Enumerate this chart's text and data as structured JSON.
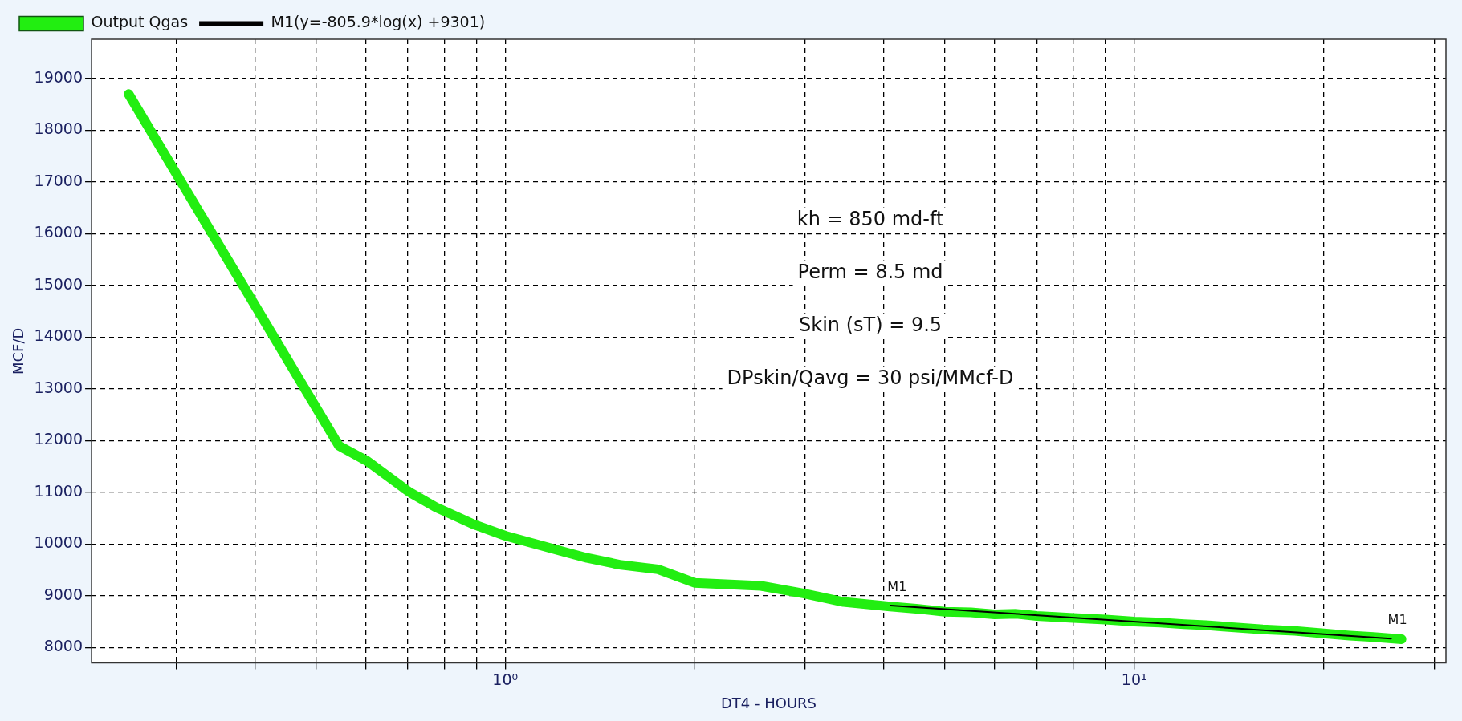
{
  "chart_data": {
    "type": "line",
    "xlabel": "DT4 - HOURS",
    "ylabel": "MCF/D",
    "xlim": [
      0.22,
      31.3
    ],
    "ylim": [
      7700,
      19760
    ],
    "xticks": [
      {
        "value": 0.3,
        "label": null
      },
      {
        "value": 0.4,
        "label": null
      },
      {
        "value": 0.5,
        "label": null
      },
      {
        "value": 0.6,
        "label": null
      },
      {
        "value": 0.7,
        "label": null
      },
      {
        "value": 0.8,
        "label": null
      },
      {
        "value": 0.9,
        "label": null
      },
      {
        "value": 1,
        "label": "10⁰"
      },
      {
        "value": 2,
        "label": null
      },
      {
        "value": 3,
        "label": null
      },
      {
        "value": 4,
        "label": null
      },
      {
        "value": 5,
        "label": null
      },
      {
        "value": 6,
        "label": null
      },
      {
        "value": 7,
        "label": null
      },
      {
        "value": 8,
        "label": null
      },
      {
        "value": 9,
        "label": null
      },
      {
        "value": 10,
        "label": "10¹"
      },
      {
        "value": 20,
        "label": null
      },
      {
        "value": 30,
        "label": null
      }
    ],
    "yticks": [
      8000,
      9000,
      10000,
      11000,
      12000,
      13000,
      14000,
      15000,
      16000,
      17000,
      18000,
      19000
    ],
    "log": "x",
    "grid": true,
    "legend": "top left",
    "marker": "none",
    "series": [
      {
        "name": "Output Qgas",
        "color": "#22ee11",
        "x": [
          0.252,
          0.544,
          0.604,
          0.705,
          0.776,
          0.895,
          1.0,
          1.24,
          1.35,
          1.52,
          1.75,
          2.0,
          2.55,
          2.99,
          3.45,
          4.09,
          4.5,
          5,
          5.5,
          6,
          6.5,
          7,
          8,
          9,
          10,
          11,
          12,
          13,
          14,
          16,
          18,
          20,
          22,
          24,
          26.6
        ],
        "values": [
          18700,
          11900,
          11600,
          11000,
          10710,
          10370,
          10160,
          9850,
          9730,
          9600,
          9510,
          9250,
          9190,
          9040,
          8880,
          8790,
          8750,
          8690,
          8680,
          8640,
          8650,
          8610,
          8570,
          8540,
          8500,
          8480,
          8450,
          8430,
          8400,
          8350,
          8320,
          8270,
          8230,
          8200,
          8160
        ]
      },
      {
        "name": "M1(y=-805.9*log(x) +9301)",
        "color": "#000000",
        "type": "line",
        "line_style": "solid",
        "x": [
          4.1,
          25.6
        ],
        "values": [
          8810,
          8170
        ]
      }
    ],
    "annotations": [
      "kh = 850 md-ft",
      "Perm = 8.5 md",
      "Skin (sT) = 9.5",
      "DPskin/Qavg = 30 psi/MMcf-D",
      {
        "text": "M1",
        "x": 4.1,
        "y": 8810
      },
      {
        "text": "M1",
        "x": 25.6,
        "y": 8170
      }
    ]
  }
}
